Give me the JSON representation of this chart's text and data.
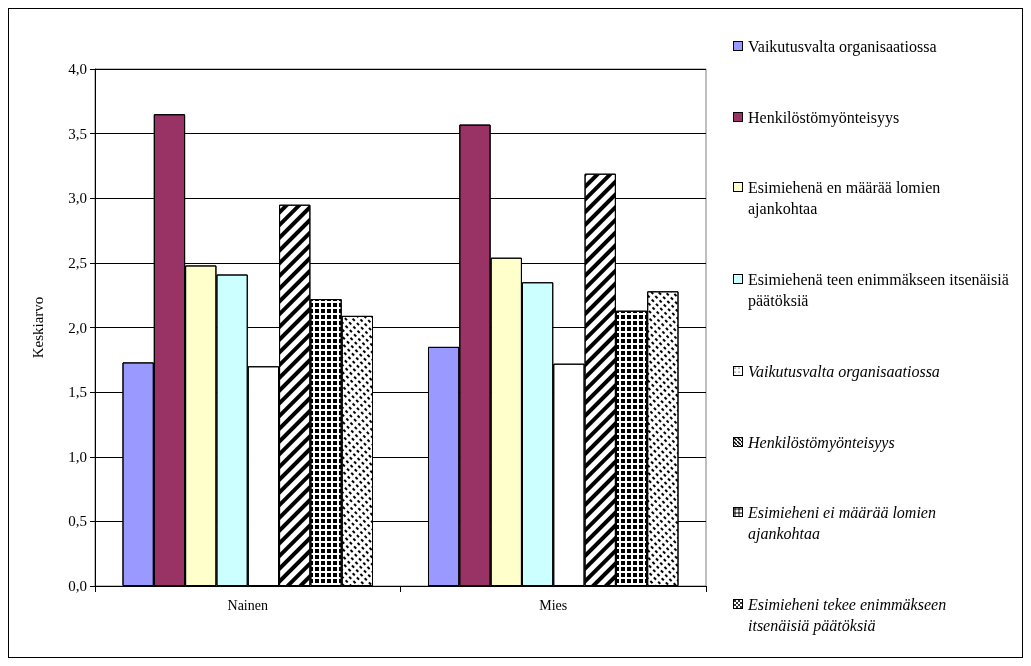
{
  "chart_data": {
    "type": "bar",
    "ylabel": "Keskiarvo",
    "categories": [
      "Nainen",
      "Mies"
    ],
    "series": [
      {
        "name": "Vaikutusvalta organisaatiossa",
        "color": "#9999ff",
        "values": [
          1.73,
          1.85
        ]
      },
      {
        "name": "Henkilöstömyönteisyys",
        "color": "#993366",
        "values": [
          3.65,
          3.57
        ]
      },
      {
        "name": "Esimiehenä en määrää lomien ajankohtaa",
        "color": "#ffffcc",
        "values": [
          2.48,
          2.54
        ]
      },
      {
        "name": "Esimiehenä teen enimmäkseen itsenäisiä päätöksiä",
        "color": "#ccffff",
        "values": [
          2.41,
          2.35
        ]
      },
      {
        "name": "Vaikutusvalta organisaatiossa",
        "color": "#ffffff",
        "values": [
          1.7,
          1.72
        ]
      },
      {
        "name": "Henkilöstömyönteisyys",
        "color": "#ffffff",
        "values": [
          2.95,
          3.19
        ]
      },
      {
        "name": "Esimieheni ei määrää lomien ajankohtaa",
        "color": "#ffffff",
        "values": [
          2.22,
          2.13
        ]
      },
      {
        "name": "Esimieheni tekee enimmäkseen itsenäisiä päätöksiä",
        "color": "#ffffff",
        "values": [
          2.09,
          2.28
        ]
      }
    ],
    "ylim": [
      0,
      4
    ],
    "yticks": [
      {
        "value": 0,
        "label": "0,0"
      },
      {
        "value": 0.5,
        "label": "0,5"
      },
      {
        "value": 1,
        "label": "1,0"
      },
      {
        "value": 1.5,
        "label": "1,5"
      },
      {
        "value": 2,
        "label": "2,0"
      },
      {
        "value": 2.5,
        "label": "2,5"
      },
      {
        "value": 3,
        "label": "3,0"
      },
      {
        "value": 3.5,
        "label": "3,5"
      },
      {
        "value": 4,
        "label": "4,0"
      }
    ],
    "grid": "y",
    "legend": "right"
  }
}
